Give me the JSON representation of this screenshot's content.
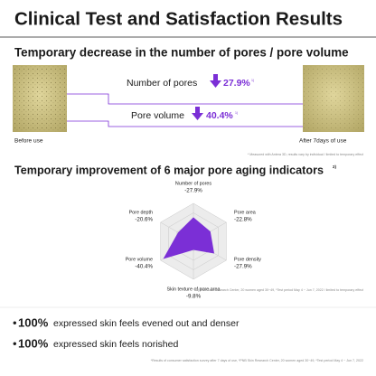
{
  "header": {
    "title": "Clinical Test and Satisfaction Results"
  },
  "pores_section": {
    "title": "Temporary decrease in the number of pores / pore volume",
    "before_label": "Before use",
    "after_label": "After 7days of use",
    "items": [
      {
        "label": "Number of pores",
        "value": "27.9%",
        "note": "1)"
      },
      {
        "label": "Pore volume",
        "value": "40.4%",
        "note": "1)"
      }
    ],
    "footnote": "* Measured with Antera 3D, results vary by individual / limited to temporary effect"
  },
  "indicators_section": {
    "title": "Temporary improvement of 6 major pore aging indicators",
    "title_note": "2)",
    "radar": {
      "type": "radar",
      "rlim": [
        0,
        -45
      ],
      "axes": [
        {
          "label": "Number of pores",
          "value": -27.9,
          "value_label": "-27.9%"
        },
        {
          "label": "Pore area",
          "value": -22.8,
          "value_label": "-22.8%"
        },
        {
          "label": "Pore density",
          "value": -27.9,
          "value_label": "-27.9%"
        },
        {
          "label": "Skin texture of pore area",
          "value": -9.8,
          "value_label": "-9.8%"
        },
        {
          "label": "Pore volume",
          "value": -40.4,
          "value_label": "-40.4%"
        },
        {
          "label": "Pore depth",
          "value": -20.6,
          "value_label": "-20.6%"
        }
      ],
      "color": "#7b2fd6"
    },
    "footnote": "* 2) PNB Skin Research Center, 20 women aged 30~49, *Test period May 4 ~ Jun 7, 2022 / limited to temporary effect"
  },
  "satisfaction": {
    "items": [
      {
        "value": "100%",
        "text": "expressed skin feels evened out and denser"
      },
      {
        "value": "100%",
        "text": "expressed skin feels norished"
      }
    ],
    "footnote": "*Results of consumer satisfaction survey after 7 days of use, *PNB Skin Research Center, 20 women aged 30~49, *Test period May 4 ~ Jun 7, 2022"
  }
}
